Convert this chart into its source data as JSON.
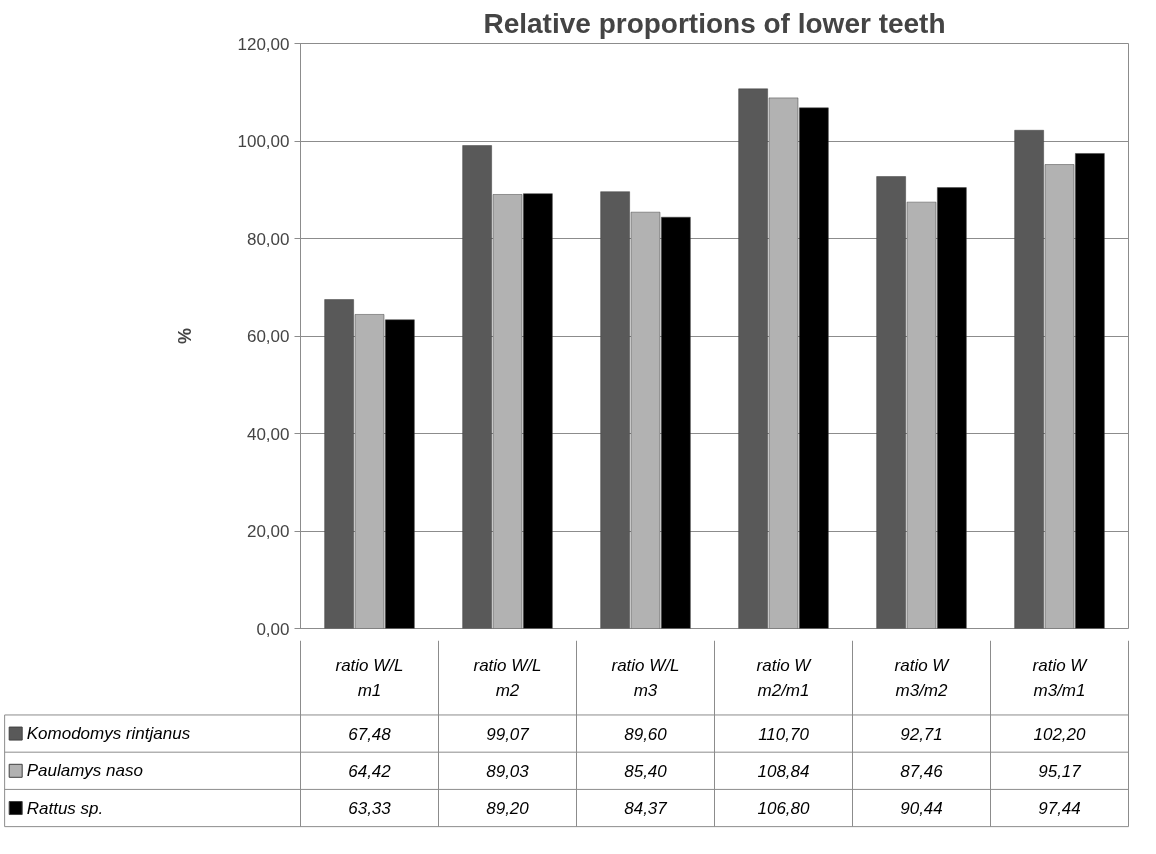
{
  "chart_data": {
    "type": "bar",
    "title": "Relative proportions of lower teeth",
    "ylabel": "%",
    "categories": [
      "ratio W/L m1",
      "ratio W/L m2",
      "ratio W/L m3",
      "ratio W m2/m1",
      "ratio W m3/m2",
      "ratio W m3/m1"
    ],
    "series": [
      {
        "name": "Komodomys rintjanus",
        "color": "#595959",
        "values": [
          67.48,
          99.07,
          89.6,
          110.7,
          92.71,
          102.2
        ],
        "value_labels": [
          "67,48",
          "99,07",
          "89,60",
          "110,70",
          "92,71",
          "102,20"
        ]
      },
      {
        "name": "Paulamys naso",
        "color": "#b2b2b2",
        "values": [
          64.42,
          89.03,
          85.4,
          108.84,
          87.46,
          95.17
        ],
        "value_labels": [
          "64,42",
          "89,03",
          "85,40",
          "108,84",
          "87,46",
          "95,17"
        ]
      },
      {
        "name": "Rattus sp.",
        "color": "#000000",
        "values": [
          63.33,
          89.2,
          84.37,
          106.8,
          90.44,
          97.44
        ],
        "value_labels": [
          "63,33",
          "89,20",
          "84,37",
          "106,80",
          "90,44",
          "97,44"
        ]
      }
    ],
    "ylim": [
      0,
      120
    ],
    "yticks": [
      {
        "value": 0,
        "label": "0,00"
      },
      {
        "value": 20,
        "label": "20,00"
      },
      {
        "value": 40,
        "label": "40,00"
      },
      {
        "value": 60,
        "label": "60,00"
      },
      {
        "value": 80,
        "label": "80,00"
      },
      {
        "value": 100,
        "label": "100,00"
      },
      {
        "value": 120,
        "label": "120,00"
      }
    ],
    "grid": "y",
    "legend": "bottom"
  }
}
